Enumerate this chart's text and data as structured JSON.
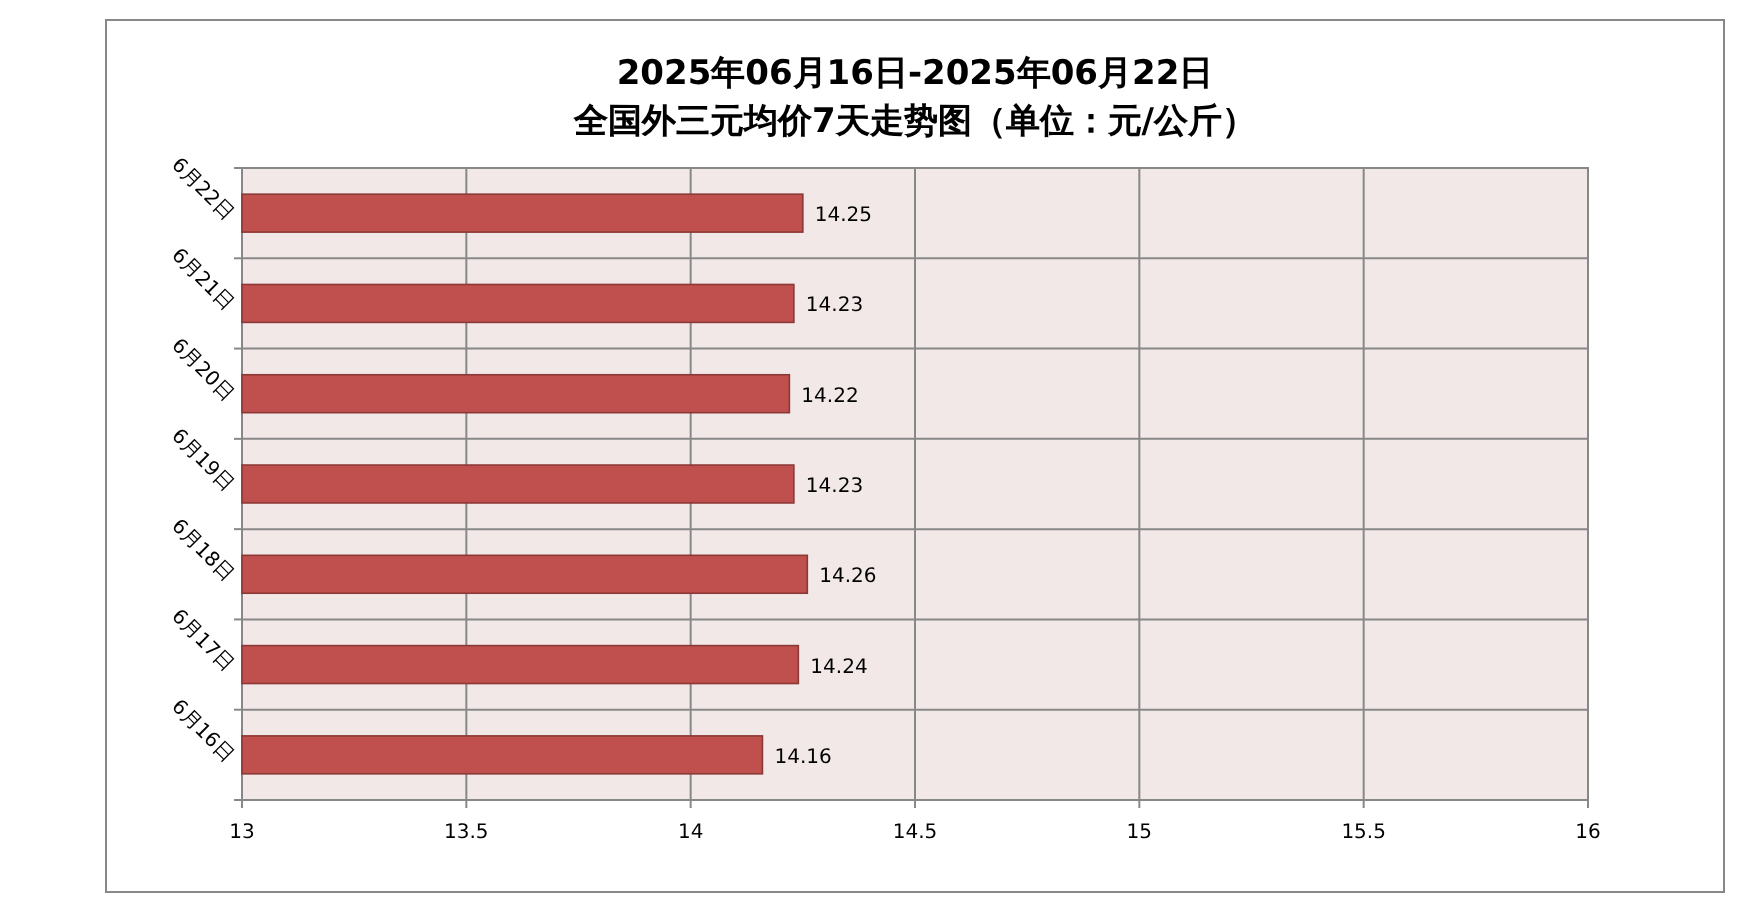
{
  "chart_data": {
    "type": "bar",
    "orientation": "horizontal",
    "title": "2025年06月16日-2025年06月22日",
    "subtitle": "全国外三元均价7天走势图（单位：元/公斤）",
    "categories": [
      "6月22日",
      "6月21日",
      "6月20日",
      "6月19日",
      "6月18日",
      "6月17日",
      "6月16日"
    ],
    "values": [
      14.25,
      14.23,
      14.22,
      14.23,
      14.26,
      14.24,
      14.16
    ],
    "color": "#c0504d",
    "xlim": [
      13,
      16
    ],
    "xticks": [
      13,
      13.5,
      14,
      14.5,
      15,
      15.5,
      16
    ],
    "grid": true,
    "data_labels": true
  }
}
